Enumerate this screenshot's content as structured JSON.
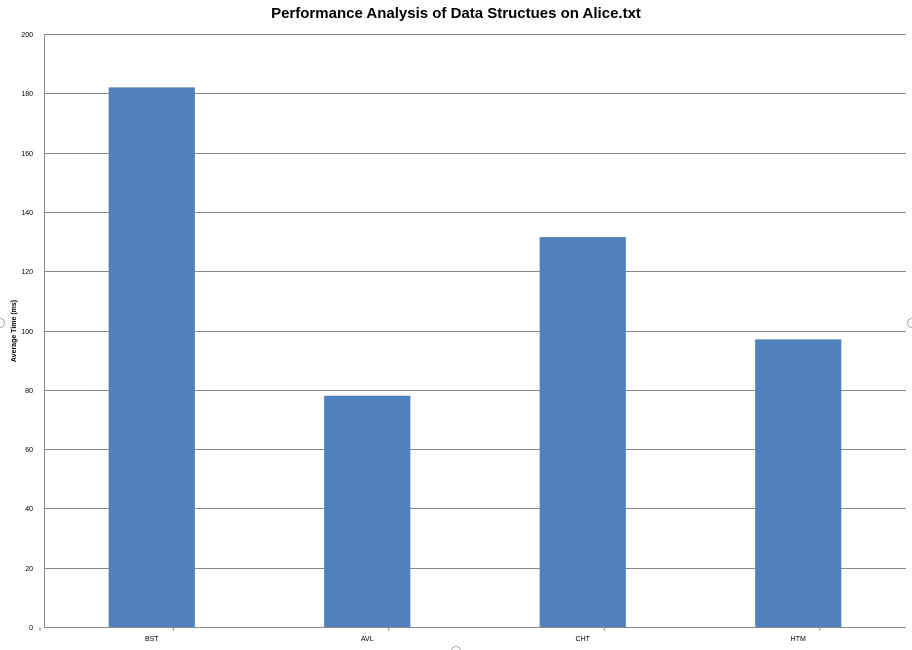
{
  "chart_data": {
    "type": "bar",
    "title": "Performance Analysis of Data Structues on Alice.txt",
    "xlabel": "",
    "ylabel": "Average Time (ms)",
    "categories": [
      "BST",
      "AVL",
      "CHT",
      "HTM"
    ],
    "values": [
      182,
      78,
      131.5,
      97
    ],
    "ylim": [
      0,
      200
    ],
    "yticks": [
      0,
      20,
      40,
      60,
      80,
      100,
      120,
      140,
      160,
      180,
      200
    ],
    "grid": true,
    "legend": "none",
    "colors": {
      "bar": "#4f81bd",
      "grid": "#8a8a8a"
    }
  }
}
